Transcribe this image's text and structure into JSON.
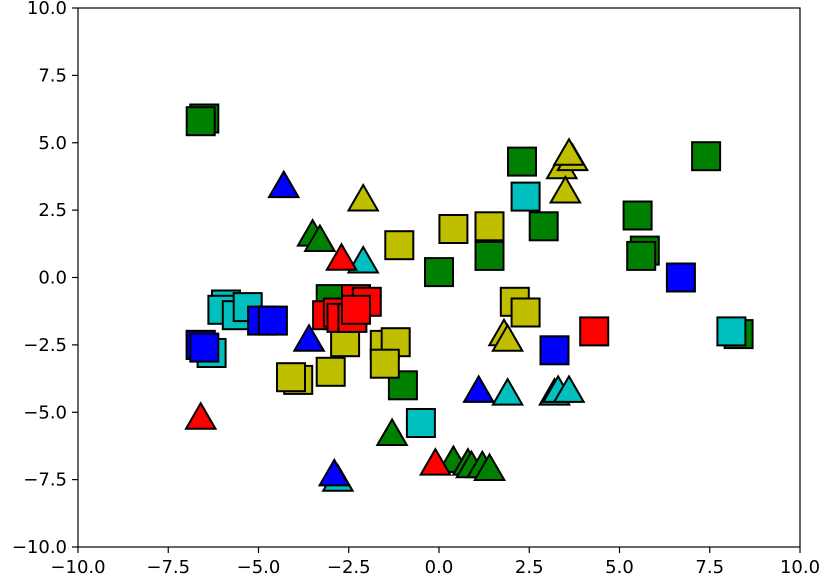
{
  "chart_data": {
    "type": "scatter",
    "title": "",
    "xlabel": "",
    "ylabel": "",
    "xlim": [
      -10,
      10
    ],
    "ylim": [
      -10,
      10
    ],
    "grid": false,
    "legend": "none",
    "x_ticks": [
      -10,
      -7.5,
      -5,
      -2.5,
      0,
      2.5,
      5,
      7.5,
      10
    ],
    "x_tick_labels": [
      "−10.0",
      "−7.5",
      "−5.0",
      "−2.5",
      "0.0",
      "2.5",
      "5.0",
      "7.5",
      "10.0"
    ],
    "y_ticks": [
      10,
      7.5,
      5,
      2.5,
      0,
      -2.5,
      -5,
      -7.5,
      -10
    ],
    "y_tick_labels": [
      "10.0",
      "7.5",
      "5.0",
      "2.5",
      "0.0",
      "−2.5",
      "−5.0",
      "−7.5",
      "−10.0"
    ],
    "colors": {
      "green": "#008000",
      "yellow": "#bfbf00",
      "cyan": "#00bfbf",
      "blue": "#0000ff",
      "red": "#ff0000"
    },
    "series": [
      {
        "color": "green",
        "marker": "square",
        "points": [
          [
            -6.5,
            5.9
          ],
          [
            -6.6,
            5.8
          ],
          [
            -3,
            -0.8
          ],
          [
            0,
            0.2
          ],
          [
            -1,
            -4
          ],
          [
            2.3,
            4.3
          ],
          [
            2.9,
            1.9
          ],
          [
            1.4,
            0.8
          ],
          [
            5.5,
            2.3
          ],
          [
            5.7,
            1.0
          ],
          [
            5.6,
            0.8
          ],
          [
            7.4,
            4.5
          ],
          [
            8.3,
            -2.1
          ]
        ]
      },
      {
        "color": "green",
        "marker": "triangle",
        "points": [
          [
            -3.5,
            1.5
          ],
          [
            -3.3,
            1.3
          ],
          [
            -1.3,
            -5.9
          ],
          [
            0.4,
            -6.9
          ],
          [
            0.8,
            -7
          ],
          [
            0.9,
            -7.1
          ],
          [
            1.2,
            -7.1
          ],
          [
            1.4,
            -7.2
          ]
        ]
      },
      {
        "color": "yellow",
        "marker": "square",
        "points": [
          [
            -1.1,
            1.2
          ],
          [
            0.4,
            1.8
          ],
          [
            1.4,
            1.9
          ],
          [
            -3.9,
            -3.8
          ],
          [
            -4.1,
            -3.7
          ],
          [
            -3,
            -3.5
          ],
          [
            -2.6,
            -2.4
          ],
          [
            -1.5,
            -2.5
          ],
          [
            -1.2,
            -2.4
          ],
          [
            -1.5,
            -3.2
          ],
          [
            2.1,
            -0.9
          ],
          [
            2.4,
            -1.3
          ]
        ]
      },
      {
        "color": "yellow",
        "marker": "triangle",
        "points": [
          [
            -2.1,
            2.8
          ],
          [
            3.4,
            4.0
          ],
          [
            3.7,
            4.3
          ],
          [
            3.6,
            4.5
          ],
          [
            3.5,
            3.1
          ],
          [
            1.8,
            -2.2
          ],
          [
            1.9,
            -2.4
          ]
        ]
      },
      {
        "color": "cyan",
        "marker": "square",
        "points": [
          [
            -5.9,
            -1
          ],
          [
            -6,
            -1.2
          ],
          [
            -5.6,
            -1.4
          ],
          [
            -5.3,
            -1.1
          ],
          [
            -6.6,
            -2.5
          ],
          [
            -6.3,
            -2.8
          ],
          [
            2.4,
            3
          ],
          [
            -0.5,
            -5.4
          ],
          [
            8.1,
            -2.0
          ]
        ]
      },
      {
        "color": "cyan",
        "marker": "triangle",
        "points": [
          [
            -2.1,
            0.5
          ],
          [
            1.9,
            -4.4
          ],
          [
            3.2,
            -4.4
          ],
          [
            3.3,
            -4.3
          ],
          [
            3.6,
            -4.3
          ],
          [
            -2.8,
            -7.6
          ]
        ]
      },
      {
        "color": "blue",
        "marker": "square",
        "points": [
          [
            -6.6,
            -2.5
          ],
          [
            -6.5,
            -2.6
          ],
          [
            -4.9,
            -1.6
          ],
          [
            -4.6,
            -1.6
          ],
          [
            3.2,
            -2.7
          ],
          [
            6.7,
            0
          ]
        ]
      },
      {
        "color": "blue",
        "marker": "triangle",
        "points": [
          [
            -4.3,
            3.3
          ],
          [
            -3.6,
            -2.4
          ],
          [
            1.1,
            -4.3
          ],
          [
            -2.9,
            -7.4
          ]
        ]
      },
      {
        "color": "red",
        "marker": "square",
        "points": [
          [
            -3.1,
            -1.4
          ],
          [
            -2.8,
            -1.3
          ],
          [
            -2.3,
            -0.8
          ],
          [
            -2.0,
            -0.9
          ],
          [
            -2.7,
            -1.5
          ],
          [
            -2.4,
            -1.5
          ],
          [
            -2.3,
            -1.2
          ],
          [
            4.3,
            -2.0
          ]
        ]
      },
      {
        "color": "red",
        "marker": "triangle",
        "points": [
          [
            -2.7,
            0.6
          ],
          [
            -6.6,
            -5.3
          ],
          [
            -0.1,
            -7.0
          ]
        ]
      }
    ]
  }
}
